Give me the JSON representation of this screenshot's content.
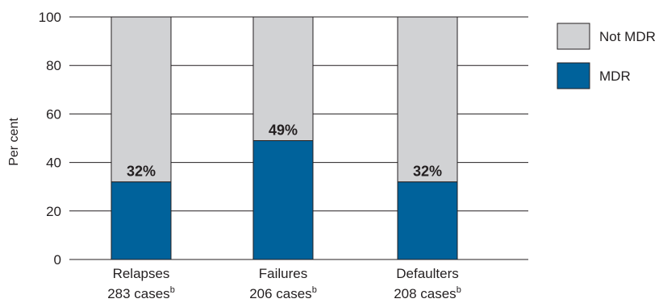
{
  "chart_data": {
    "type": "bar",
    "stacked": true,
    "ylabel": "Per cent",
    "ylim": [
      0,
      100
    ],
    "yticks": [
      0,
      20,
      40,
      60,
      80,
      100
    ],
    "grid": "horizontal",
    "legend_position": "right",
    "categories": [
      {
        "label": "Relapses",
        "sublabel": "283 cases",
        "superscript": "b"
      },
      {
        "label": "Failures",
        "sublabel": "206 cases",
        "superscript": "b"
      },
      {
        "label": "Defaulters",
        "sublabel": "208 cases",
        "superscript": "b"
      }
    ],
    "series": [
      {
        "name": "MDR",
        "color": "#00629b",
        "values": [
          32,
          49,
          32
        ]
      },
      {
        "name": "Not MDR",
        "color": "#d1d2d4",
        "values": [
          68,
          51,
          68
        ]
      }
    ],
    "data_labels": [
      "32%",
      "49%",
      "32%"
    ],
    "legend": [
      {
        "name": "Not MDR",
        "color": "#d1d2d4"
      },
      {
        "name": "MDR",
        "color": "#00629b"
      }
    ]
  }
}
